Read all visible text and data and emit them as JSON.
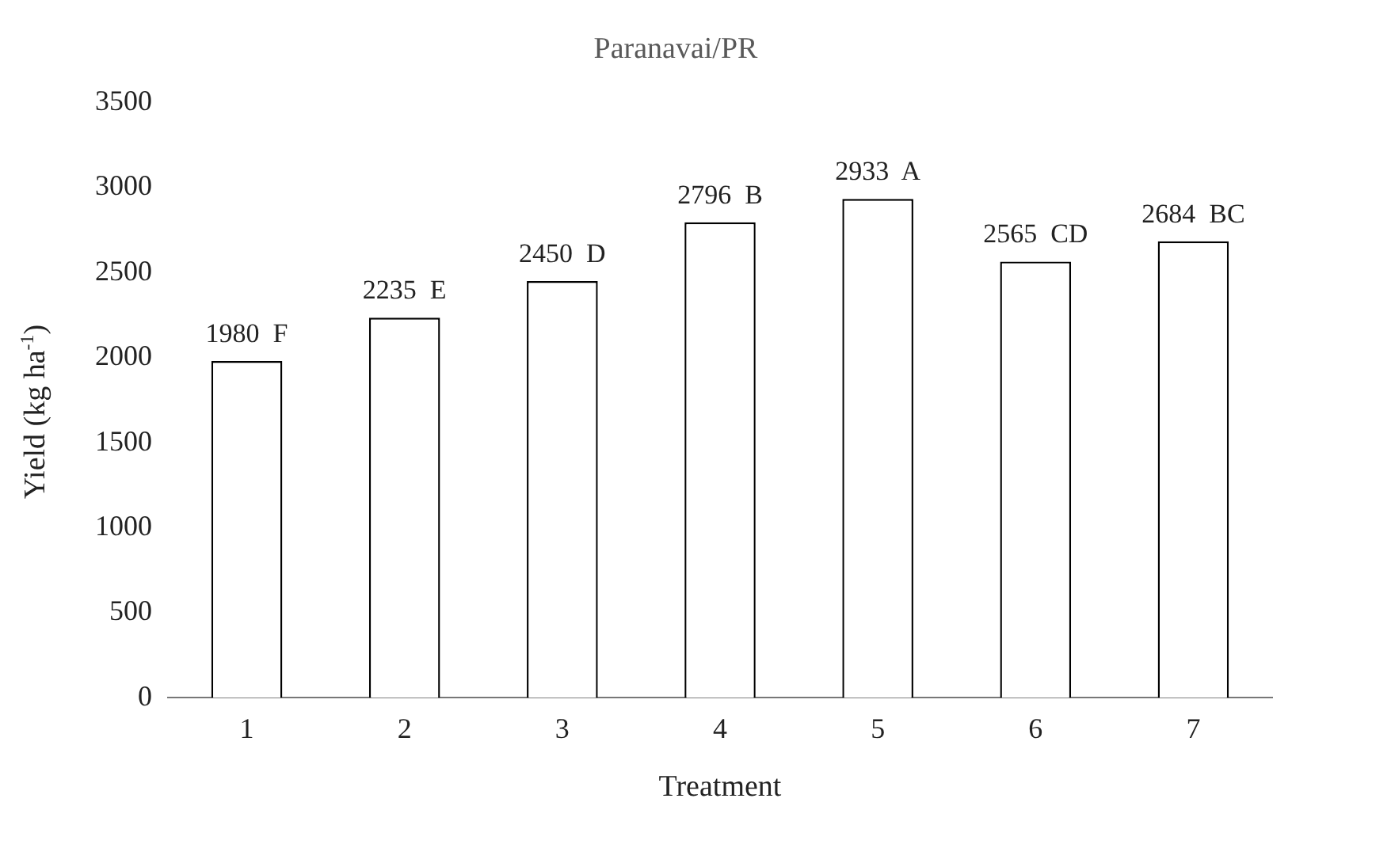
{
  "chart_data": {
    "type": "bar",
    "title": "Paranavai/PR",
    "xlabel": "Treatment",
    "ylabel": "Yield  (kg ha$^{-1}$)",
    "categories": [
      "1",
      "2",
      "3",
      "4",
      "5",
      "6",
      "7"
    ],
    "values": [
      1980,
      2235,
      2450,
      2796,
      2933,
      2565,
      2684
    ],
    "value_labels": [
      "1980  F",
      "2235  E",
      "2450  D",
      "2796  B",
      "2933  A",
      "2565  CD",
      "2684  BC"
    ],
    "color": "#ffffff",
    "ylim": [
      0,
      3500
    ],
    "yticks": [
      0,
      500,
      1000,
      1500,
      2000,
      2500,
      3000,
      3500
    ],
    "grid": false,
    "legend": false
  }
}
